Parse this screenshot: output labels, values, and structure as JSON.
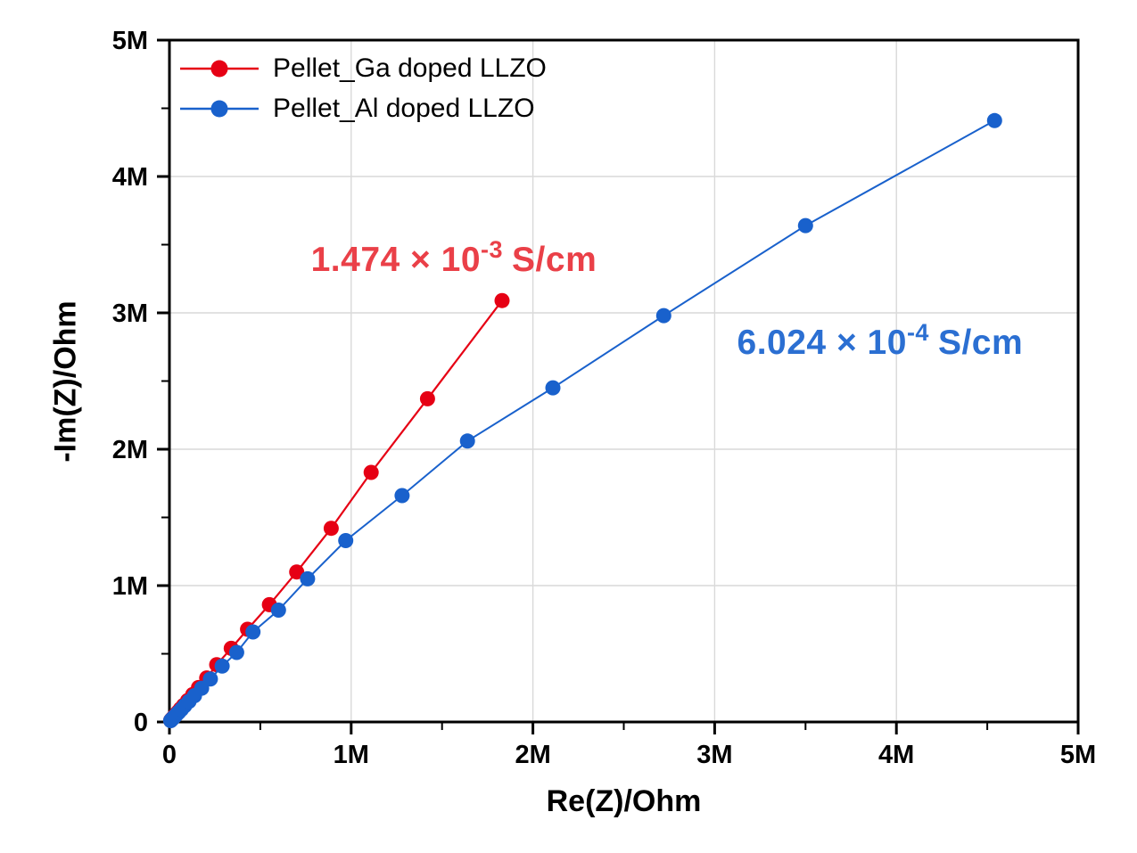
{
  "figure": {
    "background_color": "#ffffff",
    "frame_color": "#000000",
    "grid_color": "#d9d9d9"
  },
  "chart_data": {
    "type": "scatter",
    "subtype": "nyquist-impedance-plot",
    "title": "",
    "xlabel": "Re(Z)/Ohm",
    "ylabel": "-Im(Z)/Ohm",
    "x_unit_suffix": "M",
    "xlim_MOhm": [
      0,
      5
    ],
    "ylim_MOhm": [
      0,
      5
    ],
    "major_tick_values_MOhm": [
      0,
      1,
      2,
      3,
      4,
      5
    ],
    "x_tick_labels": [
      "0",
      "1M",
      "2M",
      "3M",
      "4M",
      "5M"
    ],
    "y_tick_labels": [
      "0",
      "1M",
      "2M",
      "3M",
      "4M",
      "5M"
    ],
    "minor_tick_values_MOhm": [
      0.5,
      1.5,
      2.5,
      3.5,
      4.5
    ],
    "grid": "major-both-axes",
    "legend_position": "top-left-inside",
    "series": [
      {
        "name": "Pellet_Ga doped LLZO",
        "color": "#e60014",
        "marker": "circle",
        "marker_radius": 8.5,
        "line_width": 2.2,
        "points_MOhm": [
          [
            0.007,
            0.011
          ],
          [
            0.009,
            0.014
          ],
          [
            0.011,
            0.017
          ],
          [
            0.014,
            0.022
          ],
          [
            0.018,
            0.028
          ],
          [
            0.023,
            0.036
          ],
          [
            0.029,
            0.046
          ],
          [
            0.037,
            0.058
          ],
          [
            0.048,
            0.075
          ],
          [
            0.061,
            0.096
          ],
          [
            0.078,
            0.122
          ],
          [
            0.1,
            0.157
          ],
          [
            0.128,
            0.201
          ],
          [
            0.16,
            0.252
          ],
          [
            0.205,
            0.323
          ],
          [
            0.26,
            0.42
          ],
          [
            0.34,
            0.54
          ],
          [
            0.43,
            0.68
          ],
          [
            0.55,
            0.86
          ],
          [
            0.7,
            1.1
          ],
          [
            0.89,
            1.42
          ],
          [
            1.11,
            1.83
          ],
          [
            1.42,
            2.37
          ],
          [
            1.83,
            3.09
          ]
        ]
      },
      {
        "name": "Pellet_Al doped LLZO",
        "color": "#1961cc",
        "marker": "circle",
        "marker_radius": 8.5,
        "line_width": 2.0,
        "points_MOhm": [
          [
            0.007,
            0.01
          ],
          [
            0.009,
            0.013
          ],
          [
            0.012,
            0.017
          ],
          [
            0.015,
            0.021
          ],
          [
            0.019,
            0.027
          ],
          [
            0.024,
            0.034
          ],
          [
            0.031,
            0.043
          ],
          [
            0.04,
            0.056
          ],
          [
            0.051,
            0.071
          ],
          [
            0.066,
            0.092
          ],
          [
            0.084,
            0.118
          ],
          [
            0.108,
            0.151
          ],
          [
            0.138,
            0.193
          ],
          [
            0.177,
            0.248
          ],
          [
            0.225,
            0.315
          ],
          [
            0.29,
            0.41
          ],
          [
            0.37,
            0.51
          ],
          [
            0.46,
            0.66
          ],
          [
            0.6,
            0.82
          ],
          [
            0.76,
            1.05
          ],
          [
            0.97,
            1.33
          ],
          [
            1.28,
            1.66
          ],
          [
            1.64,
            2.06
          ],
          [
            2.11,
            2.45
          ],
          [
            2.72,
            2.98
          ],
          [
            3.5,
            3.64
          ],
          [
            4.54,
            4.41
          ]
        ]
      }
    ],
    "annotations": [
      {
        "id": "ga-conductivity",
        "base": "1.474 × 10",
        "exp": "-3",
        "unit": "S/cm",
        "color": "#ea4048",
        "anchor_MOhm": [
          1.565,
          3.385
        ]
      },
      {
        "id": "al-conductivity",
        "base": "6.024 × 10",
        "exp": "-4",
        "unit": "S/cm",
        "color": "#2b6fd2",
        "anchor_MOhm": [
          3.91,
          2.78
        ]
      }
    ]
  }
}
